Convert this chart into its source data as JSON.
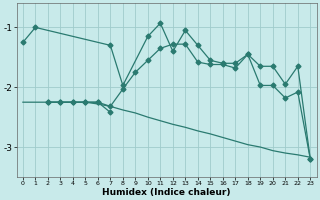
{
  "title": "",
  "xlabel": "Humidex (Indice chaleur)",
  "bg_color": "#c8eaea",
  "grid_color": "#a0cccc",
  "line_color": "#2a7a70",
  "xlim": [
    -0.5,
    23.5
  ],
  "ylim": [
    -3.5,
    -0.6
  ],
  "yticks": [
    -3,
    -2,
    -1
  ],
  "xticks": [
    0,
    1,
    2,
    3,
    4,
    5,
    6,
    7,
    8,
    9,
    10,
    11,
    12,
    13,
    14,
    15,
    16,
    17,
    18,
    19,
    20,
    21,
    22,
    23
  ],
  "line1_x": [
    0,
    1,
    2,
    3,
    4,
    5,
    6,
    7,
    8,
    9,
    10,
    11,
    12,
    13,
    14,
    15,
    16,
    17,
    18,
    19,
    20,
    21,
    22,
    23
  ],
  "line1_y": [
    -2.25,
    -2.25,
    -2.25,
    -2.25,
    -2.25,
    -2.25,
    -2.28,
    -2.32,
    -2.38,
    -2.43,
    -2.5,
    -2.56,
    -2.62,
    -2.67,
    -2.73,
    -2.78,
    -2.84,
    -2.9,
    -2.96,
    -3.0,
    -3.06,
    -3.1,
    -3.13,
    -3.17
  ],
  "line2_x": [
    0,
    1,
    7,
    8,
    10,
    11,
    12,
    13,
    14,
    15,
    16,
    17,
    18,
    19,
    20,
    21,
    22,
    23
  ],
  "line2_y": [
    -1.25,
    -1.0,
    -1.3,
    -1.97,
    -1.15,
    -0.93,
    -1.4,
    -1.05,
    -1.3,
    -1.55,
    -1.6,
    -1.6,
    -1.45,
    -1.65,
    -1.65,
    -1.95,
    -1.65,
    -3.2
  ],
  "line3_x": [
    2,
    3,
    4,
    5,
    6,
    7,
    8,
    9,
    10,
    11,
    12,
    13,
    14,
    15,
    16,
    17,
    18,
    19,
    20,
    21,
    22,
    23
  ],
  "line3_y": [
    -2.25,
    -2.25,
    -2.25,
    -2.25,
    -2.25,
    -2.32,
    -2.03,
    -1.75,
    -1.55,
    -1.35,
    -1.28,
    -1.28,
    -1.58,
    -1.62,
    -1.62,
    -1.68,
    -1.45,
    -1.97,
    -1.97,
    -2.18,
    -2.08,
    -3.2
  ],
  "line4_x": [
    2,
    3,
    4,
    5,
    6,
    7
  ],
  "line4_y": [
    -2.25,
    -2.25,
    -2.25,
    -2.25,
    -2.25,
    -2.42
  ]
}
